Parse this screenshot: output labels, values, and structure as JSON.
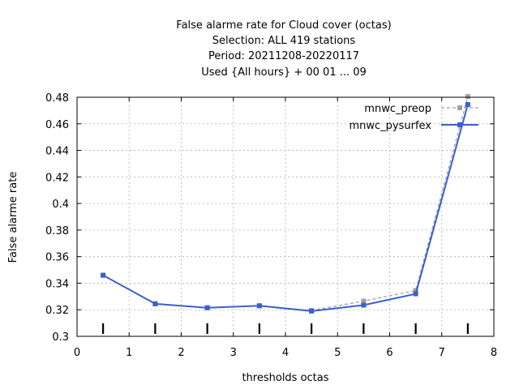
{
  "chart_data": {
    "type": "line",
    "title_lines": [
      "False alarme rate  for Cloud cover (octas)",
      "Selection: ALL     419 stations",
      "Period: 20211208-20220117",
      "Used {All hours} + 00 01 ... 09"
    ],
    "xlabel": "thresholds octas",
    "ylabel": "False alarme rate",
    "xlim": [
      0,
      8
    ],
    "ylim": [
      0.3,
      0.48
    ],
    "xticks": [
      0,
      1,
      2,
      3,
      4,
      5,
      6,
      7,
      8
    ],
    "xtick_labels": [
      "0",
      "1",
      "2",
      "3",
      "4",
      "5",
      "6",
      "7",
      "8"
    ],
    "yticks": [
      0.3,
      0.32,
      0.34,
      0.36,
      0.38,
      0.4,
      0.42,
      0.44,
      0.46,
      0.48
    ],
    "ytick_labels": [
      "0.3",
      "0.32",
      "0.34",
      "0.36",
      "0.38",
      "0.4",
      "0.42",
      "0.44",
      "0.46",
      "0.48"
    ],
    "grid": true,
    "legend_position": "top-right",
    "threshold_markers": [
      0.5,
      1.5,
      2.5,
      3.5,
      4.5,
      5.5,
      6.5,
      7.5
    ],
    "x": [
      0.5,
      1.5,
      2.5,
      3.5,
      4.5,
      5.5,
      6.5,
      7.5
    ],
    "series": [
      {
        "name": "mnwc_preop",
        "color": "#a0a0a0",
        "style": "dashed",
        "values": [
          0.346,
          0.3245,
          0.3215,
          0.323,
          0.3195,
          0.3265,
          0.3345,
          0.4805
        ]
      },
      {
        "name": "mnwc_pysurfex",
        "color": "#3a5fcd",
        "style": "solid",
        "values": [
          0.346,
          0.3245,
          0.3215,
          0.323,
          0.319,
          0.3235,
          0.332,
          0.4745
        ]
      }
    ]
  }
}
